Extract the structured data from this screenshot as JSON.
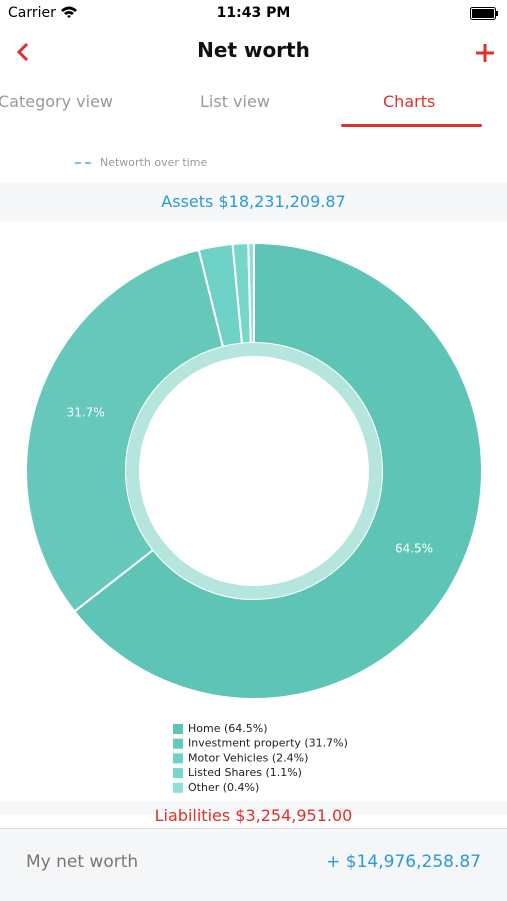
{
  "status_bar": {
    "carrier": "Carrier",
    "time": "11:43 PM"
  },
  "nav": {
    "title": "Net worth"
  },
  "tabs": [
    "Category view",
    "List view",
    "Charts"
  ],
  "line_legend": "Networth over time",
  "assets_header": "Assets $18,231,209.87",
  "chart_data": {
    "type": "pie",
    "categories": [
      "Home (64.5%)",
      "Investment property (31.7%)",
      "Motor Vehicles (2.4%)",
      "Listed Shares (1.1%)",
      "Other (0.4%)"
    ],
    "values": [
      64.5,
      31.7,
      2.4,
      1.1,
      0.4
    ],
    "value_labels": [
      "64.5%",
      "31.7%",
      null,
      null,
      null
    ],
    "colors": [
      "#5ec4b5",
      "#65c8ba",
      "#6dd2c5",
      "#77d6ca",
      "#8fdfd4"
    ],
    "donut": true
  },
  "liabilities_header": "Liabilities $3,254,951.00",
  "footer": {
    "label": "My net worth",
    "value": "+ $14,976,258.87"
  }
}
